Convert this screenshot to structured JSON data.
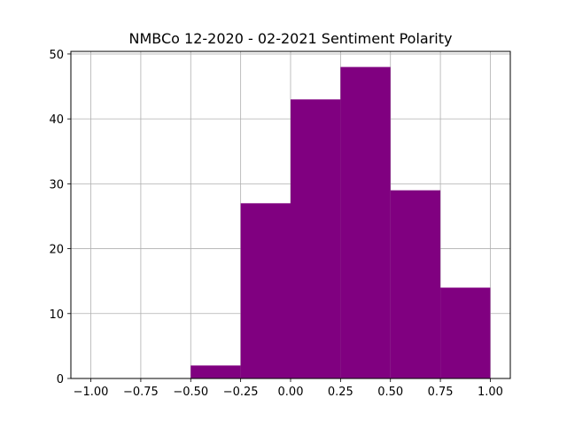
{
  "chart_data": {
    "type": "bar",
    "title": "NMBCo 12-2020 - 02-2021 Sentiment Polarity",
    "xlabel": "",
    "ylabel": "",
    "bins": [
      {
        "x0": -0.5,
        "x1": -0.25,
        "count": 2
      },
      {
        "x0": -0.25,
        "x1": 0.0,
        "count": 27
      },
      {
        "x0": 0.0,
        "x1": 0.25,
        "count": 43
      },
      {
        "x0": 0.25,
        "x1": 0.5,
        "count": 48
      },
      {
        "x0": 0.5,
        "x1": 0.75,
        "count": 29
      },
      {
        "x0": 0.75,
        "x1": 1.0,
        "count": 14
      }
    ],
    "xlim": [
      -1.1,
      1.1
    ],
    "ylim": [
      0,
      50.4
    ],
    "xticks": [
      -1.0,
      -0.75,
      -0.5,
      -0.25,
      0.0,
      0.25,
      0.5,
      0.75,
      1.0
    ],
    "xtick_labels": [
      "−1.00",
      "−0.75",
      "−0.50",
      "−0.25",
      "0.00",
      "0.25",
      "0.50",
      "0.75",
      "1.00"
    ],
    "yticks": [
      0,
      10,
      20,
      30,
      40,
      50
    ],
    "ytick_labels": [
      "0",
      "10",
      "20",
      "30",
      "40",
      "50"
    ],
    "grid": true,
    "bar_color": "#800080"
  }
}
